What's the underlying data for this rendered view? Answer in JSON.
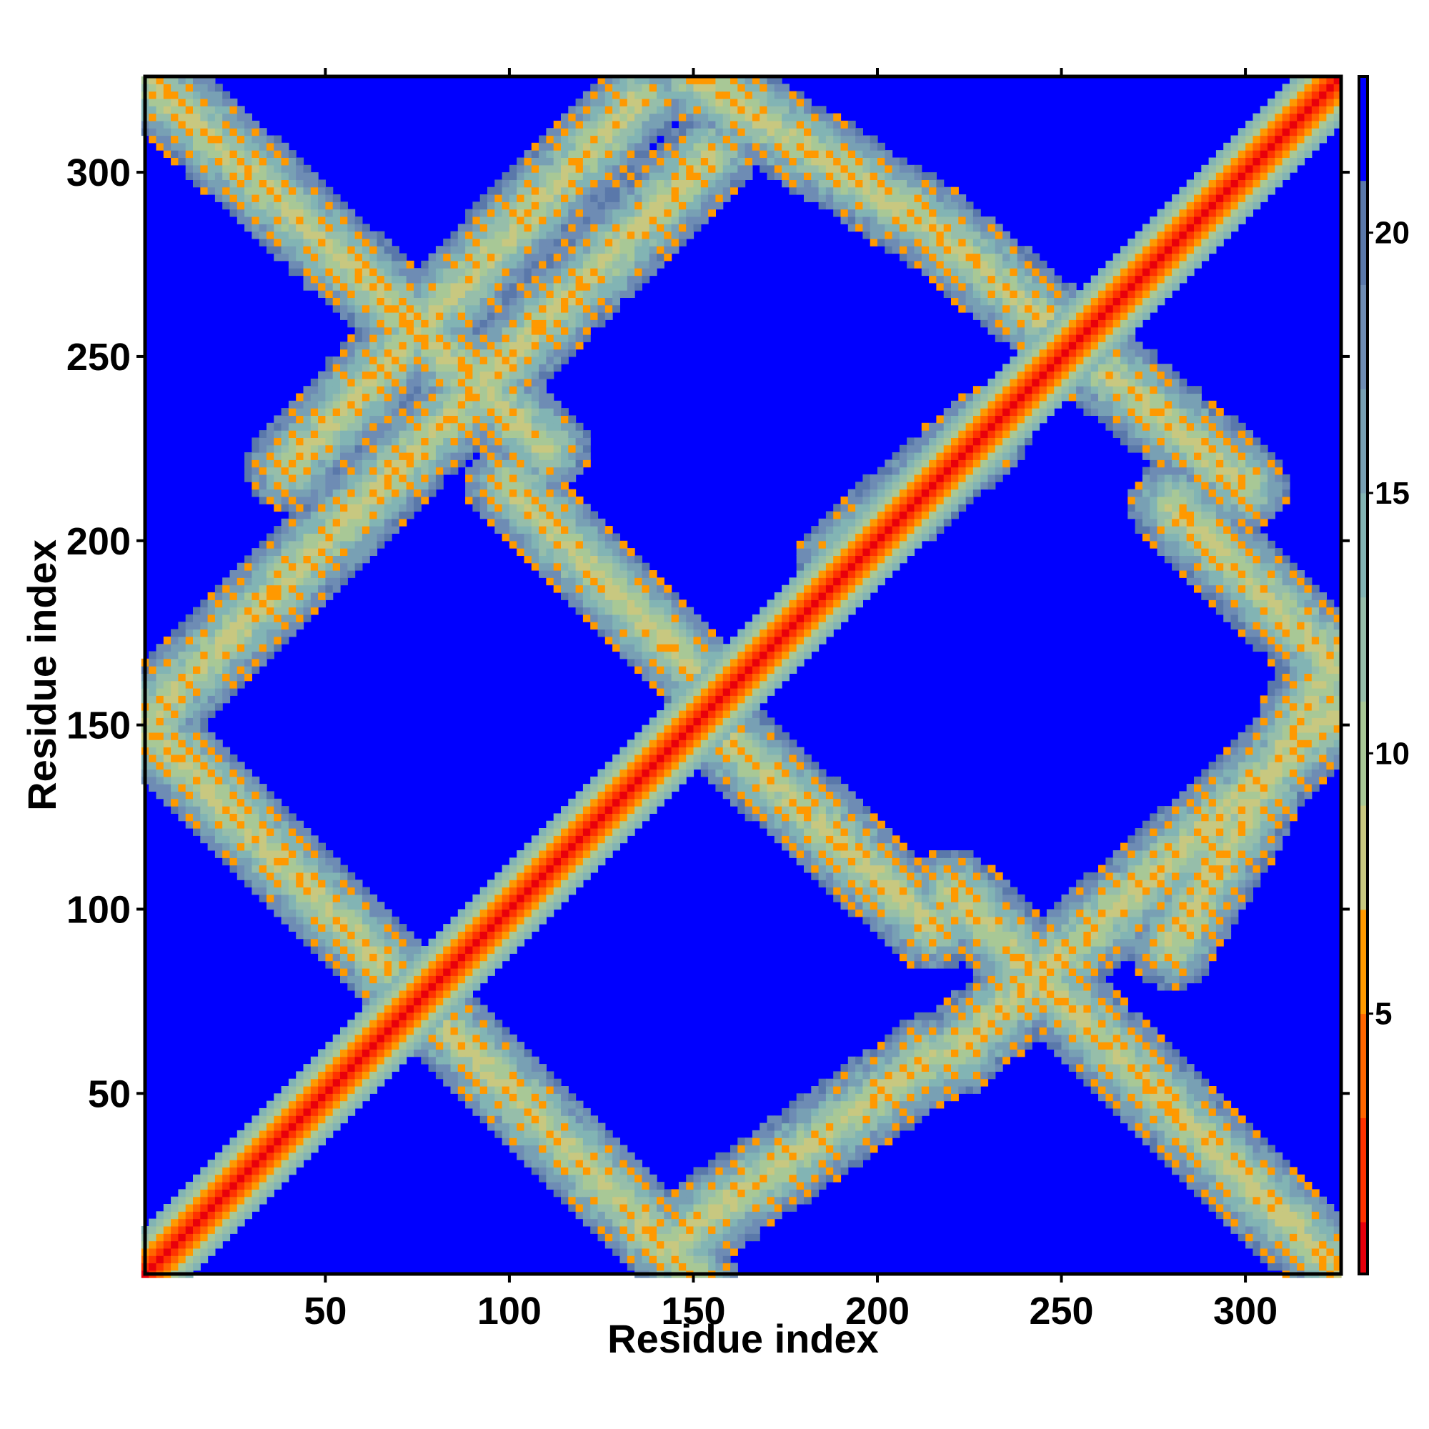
{
  "chart_data": {
    "type": "heatmap",
    "title": "",
    "xlabel": "Residue index",
    "ylabel": "Residue index",
    "xlim": [
      1,
      326
    ],
    "ylim": [
      1,
      326
    ],
    "xticks": [
      50,
      100,
      150,
      200,
      250,
      300
    ],
    "yticks": [
      50,
      100,
      150,
      200,
      250,
      300
    ],
    "xtick_labels": [
      "50",
      "100",
      "150",
      "200",
      "250",
      "300"
    ],
    "ytick_labels": [
      "50",
      "100",
      "150",
      "200",
      "250",
      "300"
    ],
    "grid": false,
    "background_value_color": "#0000ff",
    "colorbar": {
      "position": "right",
      "range": [
        0,
        23
      ],
      "ticks": [
        5,
        10,
        15,
        20
      ],
      "tick_labels": [
        "5",
        "10",
        "15",
        "20"
      ],
      "colors": [
        {
          "max": 1,
          "color": "#e8000b"
        },
        {
          "max": 3,
          "color": "#ff3300"
        },
        {
          "max": 5,
          "color": "#ff6600"
        },
        {
          "max": 7,
          "color": "#ff9900"
        },
        {
          "max": 9,
          "color": "#c8c880"
        },
        {
          "max": 11,
          "color": "#a8c896"
        },
        {
          "max": 13,
          "color": "#96beaa"
        },
        {
          "max": 15,
          "color": "#82b4b4"
        },
        {
          "max": 17,
          "color": "#78a0b4"
        },
        {
          "max": 19,
          "color": "#6e8cb4"
        },
        {
          "max": 21,
          "color": "#5a78aa"
        },
        {
          "max": 23,
          "color": "#0000ff"
        }
      ]
    },
    "contact_bands": [
      {
        "kind": "diagonal",
        "description": "main diagonal i = j",
        "start": [
          1,
          1
        ],
        "end": [
          326,
          326
        ]
      },
      {
        "kind": "anti",
        "start": [
          1,
          326
        ],
        "end": [
          110,
          225
        ]
      },
      {
        "kind": "anti",
        "start": [
          1,
          150
        ],
        "end": [
          150,
          1
        ]
      },
      {
        "kind": "anti",
        "start": [
          155,
          150
        ],
        "end": [
          215,
          95
        ]
      },
      {
        "kind": "anti",
        "start": [
          100,
          215
        ],
        "end": [
          150,
          165
        ]
      },
      {
        "kind": "anti",
        "start": [
          150,
          326
        ],
        "end": [
          215,
          285
        ]
      },
      {
        "kind": "anti",
        "start": [
          215,
          285
        ],
        "end": [
          300,
          215
        ]
      },
      {
        "kind": "anti",
        "start": [
          280,
          210
        ],
        "end": [
          326,
          165
        ]
      },
      {
        "kind": "anti",
        "start": [
          220,
          105
        ],
        "end": [
          326,
          1
        ]
      },
      {
        "kind": "parallel",
        "start": [
          5,
          155
        ],
        "end": [
          155,
          305
        ]
      },
      {
        "kind": "parallel",
        "start": [
          40,
          220
        ],
        "end": [
          135,
          320
        ]
      },
      {
        "kind": "parallel",
        "start": [
          145,
          10
        ],
        "end": [
          215,
          60
        ]
      },
      {
        "kind": "parallel",
        "start": [
          220,
          60
        ],
        "end": [
          326,
          155
        ]
      },
      {
        "kind": "parallel",
        "start": [
          326,
          170
        ],
        "end": [
          280,
          90
        ]
      },
      {
        "kind": "parallel",
        "start": [
          190,
          195
        ],
        "end": [
          230,
          230
        ]
      }
    ]
  }
}
